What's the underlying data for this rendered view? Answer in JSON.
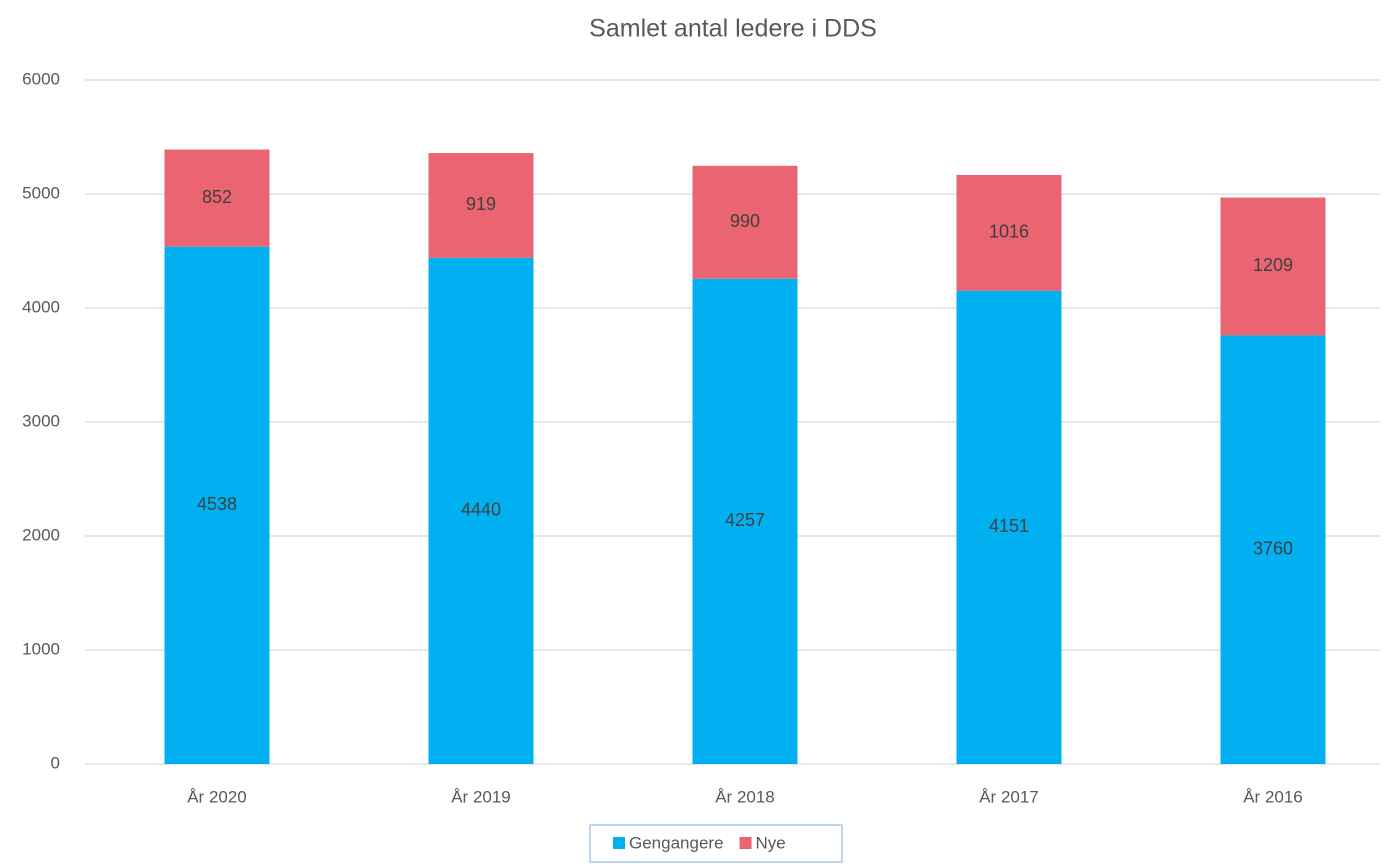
{
  "chart_data": {
    "type": "stacked_bar",
    "title": "Samlet antal ledere i DDS",
    "categories": [
      "År 2020",
      "År 2019",
      "År 2018",
      "År 2017",
      "År 2016"
    ],
    "series": [
      {
        "name": "Gengangere",
        "color": "#00b0f0",
        "values": [
          4538,
          4440,
          4257,
          4151,
          3760
        ]
      },
      {
        "name": "Nye",
        "color": "#ea6471",
        "values": [
          852,
          919,
          990,
          1016,
          1209
        ]
      }
    ],
    "ylim": [
      0,
      6000
    ],
    "yticks": [
      0,
      1000,
      2000,
      3000,
      4000,
      5000,
      6000
    ],
    "grid": true,
    "legend": "bottom"
  }
}
